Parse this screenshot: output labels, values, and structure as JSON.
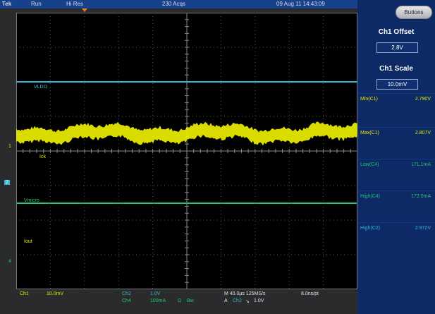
{
  "topbar": {
    "brand": "Tek",
    "run_state": "Run",
    "acq_mode": "Hi Res",
    "acq_count": "230 Acqs",
    "datetime": "09 Aug 11 14:43:09"
  },
  "traces": {
    "vldo": {
      "label": "VLDO",
      "color": "#33b8d9"
    },
    "ick": {
      "label": "Ick",
      "color": "#e6e800"
    },
    "vmicro": {
      "label": "Vmicro",
      "color": "#22c46e"
    },
    "iout": {
      "label": "Iout",
      "color": "#e6e800"
    }
  },
  "channel_markers": {
    "ch1": "1",
    "ch2": "2",
    "ch4": "4"
  },
  "panel": {
    "buttons_label": "Buttons",
    "offset_title": "Ch1 Offset",
    "offset_value": "2.8V",
    "scale_title": "Ch1 Scale",
    "scale_value": "10.0mV"
  },
  "measurements": [
    {
      "label": "Min(C1)",
      "value": "2.790V",
      "color": "#e6e800"
    },
    {
      "label": "Max(C1)",
      "value": "2.807V",
      "color": "#e6e800"
    },
    {
      "label": "Low(C4)",
      "value": "171.1mA",
      "color": "#22c46e"
    },
    {
      "label": "High(C4)",
      "value": "172.0mA",
      "color": "#22c46e"
    },
    {
      "label": "High(C2)",
      "value": "2.972V",
      "color": "#33b8d9"
    }
  ],
  "bottombar": {
    "ch1_name": "Ch1",
    "ch1_scale": "10.0mV",
    "ch2_name": "Ch2",
    "ch2_scale": "1.0V",
    "ch4_name": "Ch4",
    "ch4_scale": "100mA",
    "ch4_impedance": "Ω",
    "ch4_bw": "Bw",
    "timebase": "M 40.0µs 125MS/s",
    "resolution": "8.0ns/pt",
    "trigger_mode": "A",
    "trigger_source": "Ch2",
    "trigger_slope": "↘",
    "trigger_level": "1.0V"
  }
}
